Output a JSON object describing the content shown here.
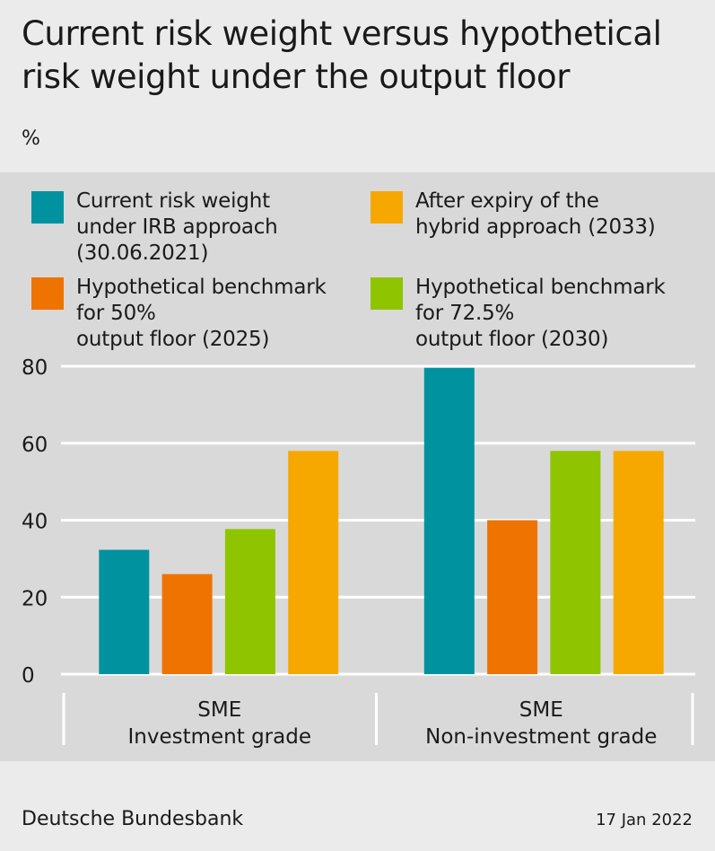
{
  "title": "Current risk weight versus hypothetical\nrisk weight under the output floor",
  "unit_label": "%",
  "legend": [
    {
      "label": "Current risk weight\nunder IRB approach\n(30.06.2021)",
      "color": "#00929f"
    },
    {
      "label": "After expiry of the\nhybrid approach (2033)",
      "color": "#f7a800"
    },
    {
      "label": "Hypothetical benchmark\nfor 50%\noutput floor (2025)",
      "color": "#ef7300"
    },
    {
      "label": "Hypothetical benchmark\nfor 72.5%\noutput floor (2030)",
      "color": "#8fc400"
    }
  ],
  "chart_data": {
    "type": "bar",
    "categories": [
      "SME\nInvestment grade",
      "SME\nNon-investment grade"
    ],
    "series": [
      {
        "name": "Current risk weight under IRB approach (30.06.2021)",
        "values": [
          32.3,
          79.6
        ],
        "color": "#00929f"
      },
      {
        "name": "Hypothetical benchmark for 50% output floor (2025)",
        "values": [
          26.0,
          40.0
        ],
        "color": "#ef7300"
      },
      {
        "name": "Hypothetical benchmark for 72.5% output floor (2030)",
        "values": [
          37.7,
          58.0
        ],
        "color": "#8fc400"
      },
      {
        "name": "After expiry of the hybrid approach (2033)",
        "values": [
          58.0,
          58.0
        ],
        "color": "#f7a800"
      }
    ],
    "ylim": [
      0,
      80
    ],
    "yticks": [
      0,
      20,
      40,
      60,
      80
    ],
    "grid": true
  },
  "footer": {
    "source": "Deutsche Bundesbank",
    "date": "17 Jan 2022"
  }
}
